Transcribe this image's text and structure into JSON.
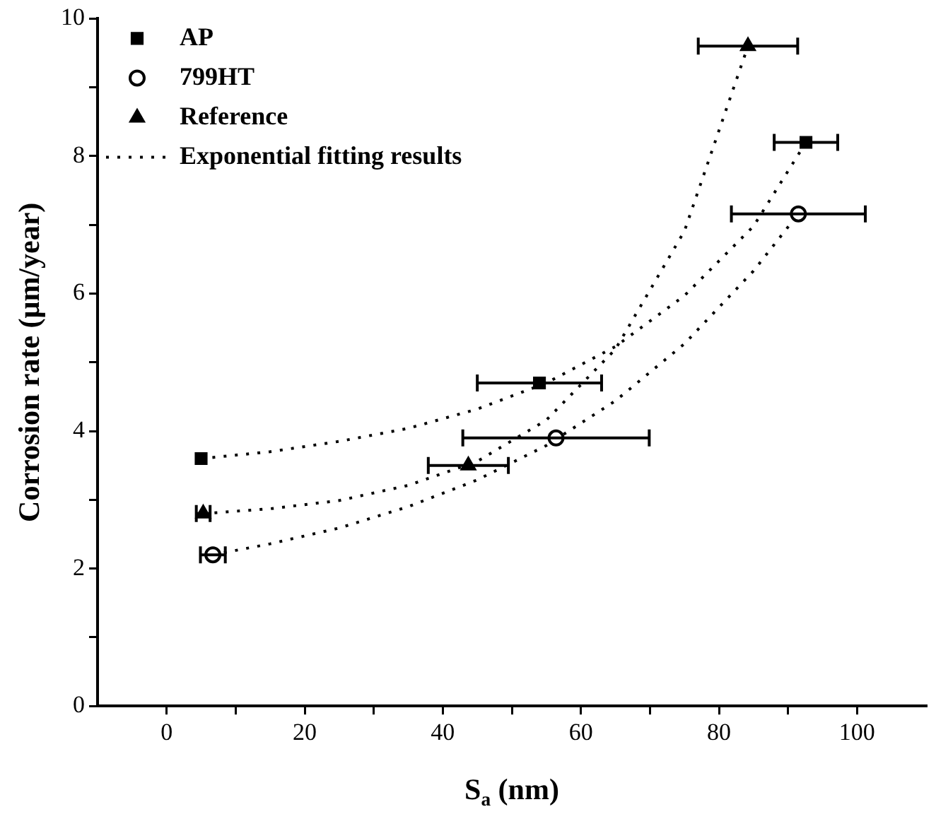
{
  "chart_data": {
    "type": "scatter",
    "xlabel": "S$_{a}$ (nm)",
    "ylabel": "Corrosion rate (μm/year)",
    "xlim": [
      -10,
      110
    ],
    "ylim": [
      0,
      10
    ],
    "xticks": [
      0,
      {
        "value": 10,
        "label": null
      },
      20,
      {
        "value": 30,
        "label": null
      },
      40,
      {
        "value": 50,
        "label": null
      },
      60,
      {
        "value": 70,
        "label": null
      },
      80,
      {
        "value": 90,
        "label": null
      },
      100
    ],
    "yticks": [
      0,
      {
        "value": 1,
        "label": null
      },
      2,
      {
        "value": 3,
        "label": null
      },
      4,
      {
        "value": 5,
        "label": null
      },
      6,
      {
        "value": 7,
        "label": null
      },
      8,
      {
        "value": 9,
        "label": null
      },
      10
    ],
    "grid": false,
    "legend": "top left",
    "series": [
      {
        "name": "AP",
        "marker": "square",
        "color": "#000000",
        "x": [
          5,
          54,
          92.6
        ],
        "values": [
          3.6,
          4.7,
          8.2
        ],
        "xerrors": [
          null,
          9,
          4.6
        ]
      },
      {
        "name": "799HT",
        "marker": "circle",
        "color": "#000000",
        "x": [
          6.7,
          56.4,
          91.5
        ],
        "values": [
          2.2,
          3.9,
          7.16
        ],
        "xerrors": [
          1.8,
          13.5,
          9.7
        ]
      },
      {
        "name": "Reference",
        "marker": "triangle",
        "color": "#000000",
        "x": [
          5.3,
          43.7,
          84.2
        ],
        "values": [
          2.8,
          3.5,
          9.6
        ],
        "xerrors": [
          1,
          5.8,
          7.2
        ]
      },
      {
        "name": "Exponential fitting results",
        "type": "line",
        "marker": "none",
        "line_style": "dotted",
        "color": "#000000",
        "x": [
          5,
          15,
          25,
          35,
          45,
          55,
          65,
          75,
          85,
          92.6
        ],
        "values": [
          3.6,
          3.7,
          3.85,
          4.04,
          4.32,
          4.7,
          5.23,
          5.97,
          6.98,
          8.2
        ]
      },
      {
        "type": "line",
        "marker": "none",
        "line_style": "dotted",
        "color": "#000000",
        "x": [
          5.3,
          15,
          25,
          35,
          45,
          55,
          65,
          75,
          84.2
        ],
        "values": [
          2.8,
          2.87,
          2.99,
          3.21,
          3.56,
          4.16,
          5.19,
          6.91,
          9.6
        ]
      },
      {
        "type": "line",
        "marker": "none",
        "line_style": "dotted",
        "color": "#000000",
        "x": [
          6.7,
          15,
          25,
          35,
          45,
          55,
          65,
          75,
          85,
          91.5
        ],
        "values": [
          2.2,
          2.36,
          2.59,
          2.9,
          3.29,
          3.79,
          4.44,
          5.27,
          6.33,
          7.16
        ]
      }
    ]
  }
}
